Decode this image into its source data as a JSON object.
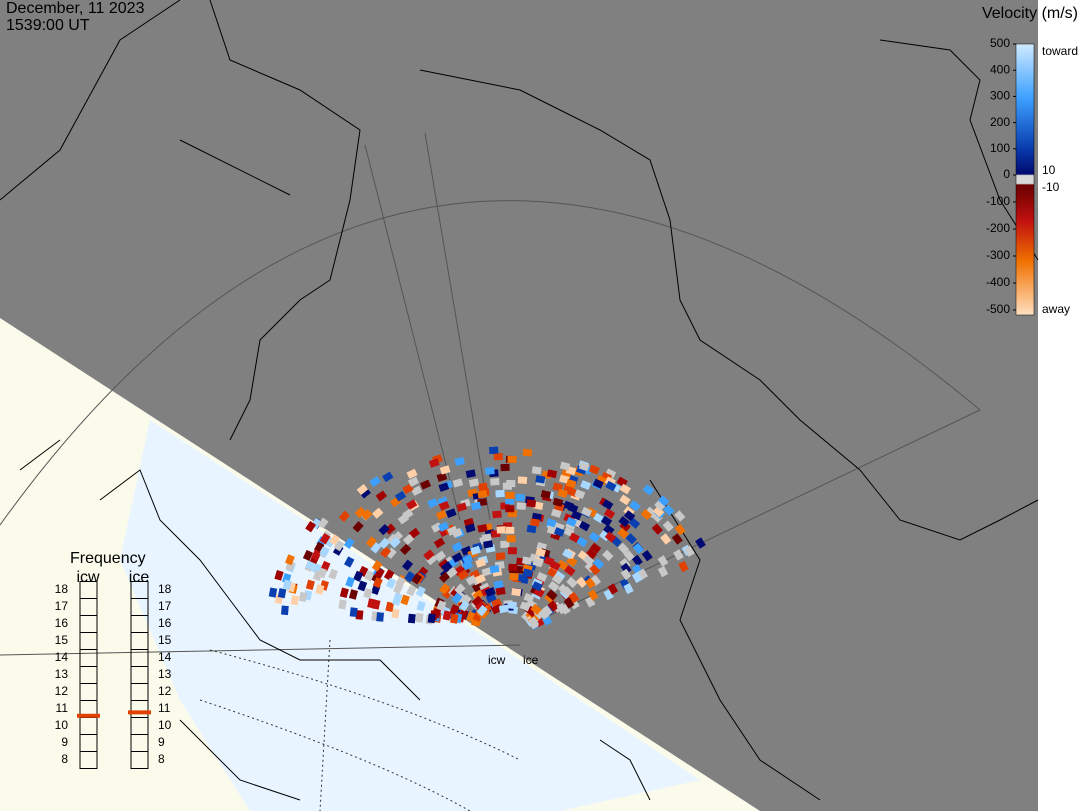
{
  "header": {
    "date": "December, 11 2023",
    "time": "1539:00 UT"
  },
  "velocity_scale": {
    "title": "Velocity (m/s)",
    "ticks": [
      500,
      400,
      300,
      200,
      100,
      0,
      -100,
      -200,
      -300,
      -400,
      -500
    ],
    "near_zero": [
      10,
      -10
    ],
    "toward": "toward",
    "away": "away"
  },
  "frequency": {
    "title": "Frequency",
    "radars": [
      {
        "name": "icw",
        "ticks": [
          18,
          17,
          16,
          15,
          14,
          13,
          12,
          11,
          10,
          9,
          8
        ],
        "selected": 10.6
      },
      {
        "name": "ice",
        "ticks": [
          18,
          17,
          16,
          15,
          14,
          13,
          12,
          11,
          10,
          9,
          8
        ],
        "selected": 10.8
      }
    ]
  },
  "radar_labels": [
    "icw",
    "ice"
  ]
}
